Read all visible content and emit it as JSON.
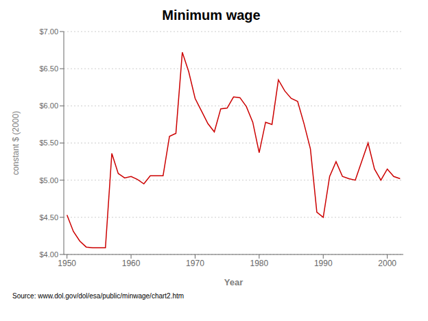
{
  "chart_data": {
    "type": "line",
    "title": "Minimum wage",
    "xlabel": "Year",
    "ylabel": "constant $ (2000)",
    "annotation": "Source: www.dol.gov/dol/esa/public/minwage/chart2.htm",
    "color": "#cc0000",
    "grid": true,
    "xlim": [
      1949.5,
      2002.5
    ],
    "ylim": [
      4.0,
      7.0
    ],
    "xticks": [
      1950,
      1960,
      1970,
      1980,
      1990,
      2000
    ],
    "yticks": [
      {
        "value": 4.0,
        "label": "$4.00"
      },
      {
        "value": 4.5,
        "label": "$4.50"
      },
      {
        "value": 5.0,
        "label": "$5.00"
      },
      {
        "value": 5.5,
        "label": "$5.50"
      },
      {
        "value": 6.0,
        "label": "$6.00"
      },
      {
        "value": 6.5,
        "label": "$6.50"
      },
      {
        "value": 7.0,
        "label": "$7.00"
      }
    ],
    "x": [
      1950,
      1951,
      1952,
      1953,
      1954,
      1955,
      1956,
      1957,
      1958,
      1959,
      1960,
      1961,
      1962,
      1963,
      1964,
      1965,
      1966,
      1967,
      1968,
      1969,
      1970,
      1971,
      1972,
      1973,
      1974,
      1975,
      1976,
      1977,
      1978,
      1979,
      1980,
      1981,
      1982,
      1983,
      1984,
      1985,
      1986,
      1987,
      1988,
      1989,
      1990,
      1991,
      1992,
      1993,
      1994,
      1995,
      1996,
      1997,
      1998,
      1999,
      2000,
      2001,
      2002
    ],
    "values": [
      4.53,
      4.31,
      4.18,
      4.1,
      4.09,
      4.09,
      4.09,
      5.36,
      5.09,
      5.03,
      5.05,
      5.01,
      4.95,
      5.06,
      5.06,
      5.06,
      5.59,
      5.63,
      6.72,
      6.46,
      6.1,
      5.93,
      5.76,
      5.65,
      5.96,
      5.97,
      6.12,
      6.11,
      5.99,
      5.78,
      5.37,
      5.78,
      5.75,
      6.35,
      6.2,
      6.1,
      6.06,
      5.76,
      5.42,
      4.57,
      4.5,
      5.05,
      5.25,
      5.05,
      5.02,
      5.0,
      5.25,
      5.5,
      5.15,
      5.0,
      5.15,
      5.05,
      5.02
    ]
  }
}
